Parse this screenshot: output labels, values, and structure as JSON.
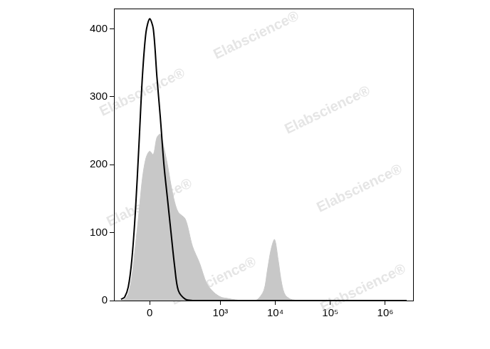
{
  "chart_data": {
    "type": "line",
    "watermark": "Elabscience®",
    "x": [
      -157,
      -130,
      -106,
      -85,
      -66,
      -48,
      -32,
      -16,
      0,
      16,
      32,
      48,
      66,
      85,
      106,
      130,
      157,
      220,
      304,
      415,
      564,
      763,
      1032,
      1393,
      1882,
      2540,
      3430,
      4630,
      6200,
      7200,
      8360,
      9710,
      11280,
      13100,
      15230,
      20550,
      37400,
      124000,
      409000,
      2450000
    ],
    "series": [
      {
        "type": "line",
        "color": "#000000",
        "values": [
          2,
          5,
          20,
          60,
          130,
          230,
          330,
          395,
          415,
          400,
          330,
          270,
          200,
          150,
          100,
          50,
          15,
          2,
          0,
          0,
          0,
          0,
          0,
          0,
          0,
          0,
          0,
          0,
          0,
          0,
          0,
          0,
          0,
          0,
          0,
          0,
          0,
          0,
          0,
          0
        ]
      },
      {
        "type": "area",
        "color": "#c8c8c8",
        "values": [
          0,
          2,
          10,
          35,
          80,
          130,
          180,
          210,
          220,
          215,
          240,
          245,
          225,
          200,
          170,
          145,
          130,
          120,
          80,
          55,
          25,
          12,
          5,
          3,
          1,
          0,
          0,
          1,
          15,
          45,
          75,
          90,
          60,
          25,
          8,
          1,
          0,
          0,
          0,
          0
        ]
      }
    ],
    "xlim": [
      -220,
      3200000
    ],
    "xticks": [
      0,
      {
        "value": 1000,
        "label": "10³"
      },
      {
        "value": 10000,
        "label": "10⁴"
      },
      {
        "value": 100000,
        "label": "10⁵"
      },
      {
        "value": 1000000,
        "label": "10⁶"
      }
    ],
    "ylim": [
      0,
      430
    ],
    "yticks": [
      0,
      100,
      200,
      300,
      400
    ],
    "grid": false
  }
}
